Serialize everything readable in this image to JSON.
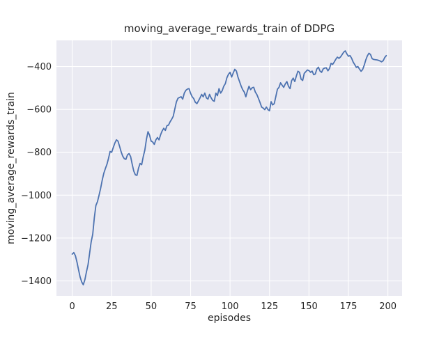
{
  "chart_data": {
    "type": "line",
    "title": "moving_average_rewards_train of DDPG",
    "xlabel": "episodes",
    "ylabel": "moving_average_rewards_train",
    "x_is_index": true,
    "x_range_note": "episodes 0 through 199",
    "xticks": [
      0,
      25,
      50,
      75,
      100,
      125,
      150,
      175,
      200
    ],
    "yticks": [
      -400,
      -600,
      -800,
      -1000,
      -1200,
      -1400
    ],
    "xlim": [
      -10,
      209
    ],
    "ylim": [
      -1470,
      -278
    ],
    "grid": true,
    "legend": "none",
    "series": [
      {
        "name": "moving_average_rewards_train",
        "values": [
          -1275,
          -1268,
          -1282,
          -1312,
          -1348,
          -1382,
          -1405,
          -1418,
          -1395,
          -1358,
          -1325,
          -1272,
          -1218,
          -1182,
          -1105,
          -1048,
          -1030,
          -1000,
          -968,
          -930,
          -898,
          -876,
          -856,
          -828,
          -796,
          -800,
          -778,
          -757,
          -742,
          -748,
          -772,
          -798,
          -818,
          -830,
          -833,
          -812,
          -806,
          -820,
          -856,
          -888,
          -905,
          -908,
          -874,
          -852,
          -858,
          -820,
          -790,
          -740,
          -704,
          -720,
          -748,
          -752,
          -763,
          -742,
          -731,
          -742,
          -718,
          -700,
          -688,
          -698,
          -676,
          -673,
          -658,
          -646,
          -632,
          -598,
          -565,
          -548,
          -544,
          -541,
          -552,
          -524,
          -511,
          -505,
          -503,
          -525,
          -541,
          -550,
          -567,
          -573,
          -560,
          -546,
          -530,
          -541,
          -524,
          -546,
          -552,
          -530,
          -546,
          -558,
          -562,
          -524,
          -536,
          -503,
          -524,
          -513,
          -492,
          -480,
          -452,
          -436,
          -427,
          -449,
          -430,
          -413,
          -421,
          -449,
          -470,
          -491,
          -508,
          -519,
          -541,
          -514,
          -492,
          -508,
          -499,
          -497,
          -519,
          -531,
          -549,
          -568,
          -589,
          -594,
          -601,
          -589,
          -601,
          -606,
          -564,
          -579,
          -573,
          -540,
          -506,
          -497,
          -476,
          -487,
          -497,
          -481,
          -470,
          -492,
          -503,
          -466,
          -454,
          -470,
          -444,
          -422,
          -427,
          -459,
          -465,
          -432,
          -424,
          -416,
          -419,
          -427,
          -421,
          -438,
          -435,
          -411,
          -403,
          -421,
          -427,
          -411,
          -407,
          -406,
          -420,
          -409,
          -385,
          -390,
          -379,
          -366,
          -356,
          -362,
          -355,
          -344,
          -333,
          -327,
          -341,
          -352,
          -349,
          -361,
          -379,
          -391,
          -404,
          -400,
          -412,
          -422,
          -414,
          -394,
          -369,
          -350,
          -338,
          -344,
          -363,
          -367,
          -368,
          -369,
          -371,
          -374,
          -378,
          -373,
          -358,
          -349
        ]
      }
    ],
    "colors": {
      "line": "#4C72B0",
      "plot_background": "#EAEAF2",
      "grid": "#FFFFFF",
      "text": "#262626",
      "figure_background": "#FFFFFF"
    }
  }
}
